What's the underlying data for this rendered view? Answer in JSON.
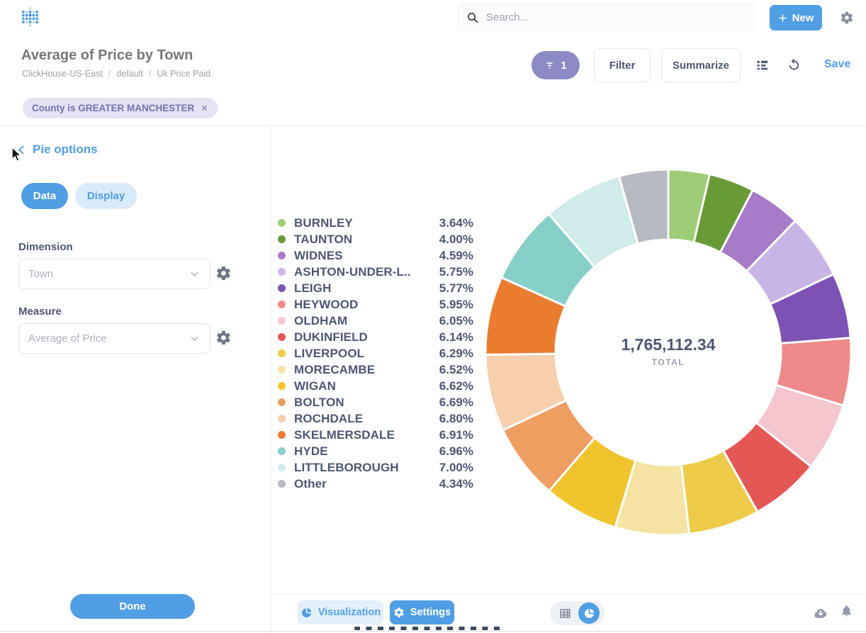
{
  "topbar": {
    "search_placeholder": "Search...",
    "new_label": "New"
  },
  "header": {
    "title": "Average of Price by Town",
    "breadcrumb": [
      "ClickHouse-US-East",
      "default",
      "Uk Price Paid"
    ],
    "breadcrumb_separator": "/",
    "filter_badge_count": "1",
    "filter_label": "Filter",
    "summarize_label": "Summarize",
    "save_label": "Save"
  },
  "filters": {
    "chip_label": "County is GREATER MANCHESTER"
  },
  "sidebar": {
    "title": "Pie options",
    "tabs": {
      "data": "Data",
      "display": "Display"
    },
    "dimension_label": "Dimension",
    "dimension_value": "Town",
    "measure_label": "Measure",
    "measure_value": "Average of Price",
    "done_label": "Done"
  },
  "footer": {
    "visualization_label": "Visualization",
    "settings_label": "Settings"
  },
  "colors": {
    "accent": "#509ee3",
    "filter_purple": "#8c8bc6",
    "text_dark": "#4c5773",
    "text_gray": "#949aab"
  },
  "chart_data": {
    "type": "pie",
    "donut": true,
    "start_angle_deg": -90,
    "direction": "clockwise",
    "legend_position": "left",
    "total_value": "1,765,112.34",
    "total_label": "TOTAL",
    "slices": [
      {
        "label": "BURNLEY",
        "pct": 3.64,
        "pct_label": "3.64%",
        "color": "#9fcd77"
      },
      {
        "label": "TAUNTON",
        "pct": 4.0,
        "pct_label": "4.00%",
        "color": "#689b36"
      },
      {
        "label": "WIDNES",
        "pct": 4.59,
        "pct_label": "4.59%",
        "color": "#a87bc9"
      },
      {
        "label": "ASHTON-UNDER-L..",
        "pct": 5.75,
        "pct_label": "5.75%",
        "color": "#c9b5e5"
      },
      {
        "label": "LEIGH",
        "pct": 5.77,
        "pct_label": "5.77%",
        "color": "#7e52b5"
      },
      {
        "label": "HEYWOOD",
        "pct": 5.95,
        "pct_label": "5.95%",
        "color": "#ee8a8a"
      },
      {
        "label": "OLDHAM",
        "pct": 6.05,
        "pct_label": "6.05%",
        "color": "#f4c6ce"
      },
      {
        "label": "DUKINFIELD",
        "pct": 6.14,
        "pct_label": "6.14%",
        "color": "#e35755"
      },
      {
        "label": "LIVERPOOL",
        "pct": 6.29,
        "pct_label": "6.29%",
        "color": "#eeca49"
      },
      {
        "label": "MORECAMBE",
        "pct": 6.52,
        "pct_label": "6.52%",
        "color": "#f6e3a3"
      },
      {
        "label": "WIGAN",
        "pct": 6.62,
        "pct_label": "6.62%",
        "color": "#f0c42c"
      },
      {
        "label": "BOLTON",
        "pct": 6.69,
        "pct_label": "6.69%",
        "color": "#ef9e61"
      },
      {
        "label": "ROCHDALE",
        "pct": 6.8,
        "pct_label": "6.80%",
        "color": "#f6cfad"
      },
      {
        "label": "SKELMERSDALE",
        "pct": 6.91,
        "pct_label": "6.91%",
        "color": "#eb7c2f"
      },
      {
        "label": "HYDE",
        "pct": 6.96,
        "pct_label": "6.96%",
        "color": "#86cfc9"
      },
      {
        "label": "LITTLEBOROUGH",
        "pct": 7.0,
        "pct_label": "7.00%",
        "color": "#cfebea"
      },
      {
        "label": "Other",
        "pct": 4.34,
        "pct_label": "4.34%",
        "color": "#b7b9c3"
      }
    ]
  }
}
